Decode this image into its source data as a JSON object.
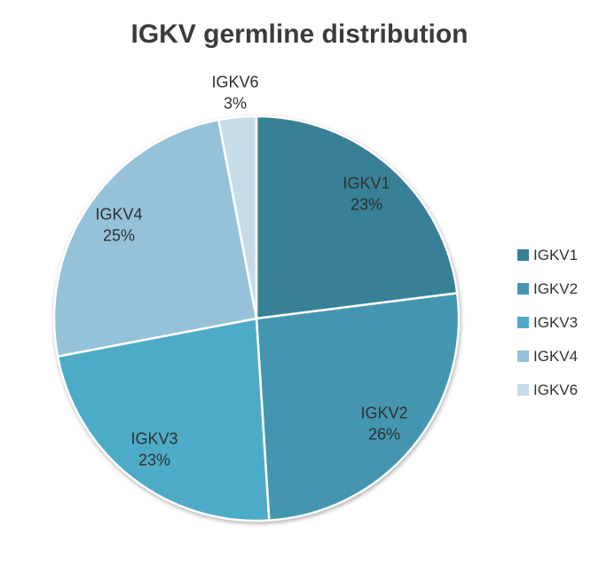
{
  "header": {
    "title": "IGKV germline distribution"
  },
  "chart_data": {
    "type": "pie",
    "title": "IGKV germline distribution",
    "unit": "%",
    "start_angle_deg": 0,
    "direction": "clockwise",
    "legend_position": "right",
    "data_labels": "category name and percentage",
    "categories": [
      "IGKV1",
      "IGKV2",
      "IGKV3",
      "IGKV4",
      "IGKV6"
    ],
    "values": [
      23,
      26,
      23,
      25,
      3
    ],
    "slices": [
      {
        "label": "IGKV1",
        "value": 23,
        "percent_text": "23%",
        "color": "#388096"
      },
      {
        "label": "IGKV2",
        "value": 26,
        "percent_text": "26%",
        "color": "#4496B0"
      },
      {
        "label": "IGKV3",
        "value": 23,
        "percent_text": "23%",
        "color": "#4EABC8"
      },
      {
        "label": "IGKV4",
        "value": 25,
        "percent_text": "25%",
        "color": "#95C2D8"
      },
      {
        "label": "IGKV6",
        "value": 3,
        "percent_text": "3%",
        "color": "#C6DDE9"
      }
    ],
    "colors": {
      "slice_border": "#ffffff",
      "label_text": "#2f2f2f",
      "title_text": "#3b3b3b",
      "legend_text": "#333333",
      "background": "#ffffff"
    }
  }
}
